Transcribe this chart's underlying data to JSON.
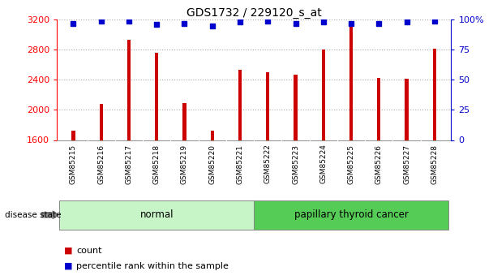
{
  "title": "GDS1732 / 229120_s_at",
  "samples": [
    "GSM85215",
    "GSM85216",
    "GSM85217",
    "GSM85218",
    "GSM85219",
    "GSM85220",
    "GSM85221",
    "GSM85222",
    "GSM85223",
    "GSM85224",
    "GSM85225",
    "GSM85226",
    "GSM85227",
    "GSM85228"
  ],
  "counts": [
    1720,
    2080,
    2930,
    2760,
    2090,
    1720,
    2530,
    2500,
    2470,
    2800,
    3130,
    2420,
    2410,
    2810
  ],
  "percentiles": [
    97,
    99,
    99,
    96,
    97,
    95,
    98,
    99,
    97,
    98,
    97,
    97,
    98,
    99
  ],
  "groups": [
    {
      "label": "normal",
      "start": 0,
      "end": 7,
      "color": "#c8f5c8"
    },
    {
      "label": "papillary thyroid cancer",
      "start": 7,
      "end": 14,
      "color": "#55cc55"
    }
  ],
  "bar_color": "#cc0000",
  "percentile_color": "#0000cc",
  "ylim_left": [
    1600,
    3200
  ],
  "ylim_right": [
    0,
    100
  ],
  "yticks_left": [
    1600,
    2000,
    2400,
    2800,
    3200
  ],
  "yticks_right": [
    0,
    25,
    50,
    75,
    100
  ],
  "ytick_labels_right": [
    "0",
    "25",
    "50",
    "75",
    "100%"
  ],
  "disease_state_label": "disease state",
  "legend_count_label": "count",
  "legend_percentile_label": "percentile rank within the sample",
  "sep_index": 6.5
}
